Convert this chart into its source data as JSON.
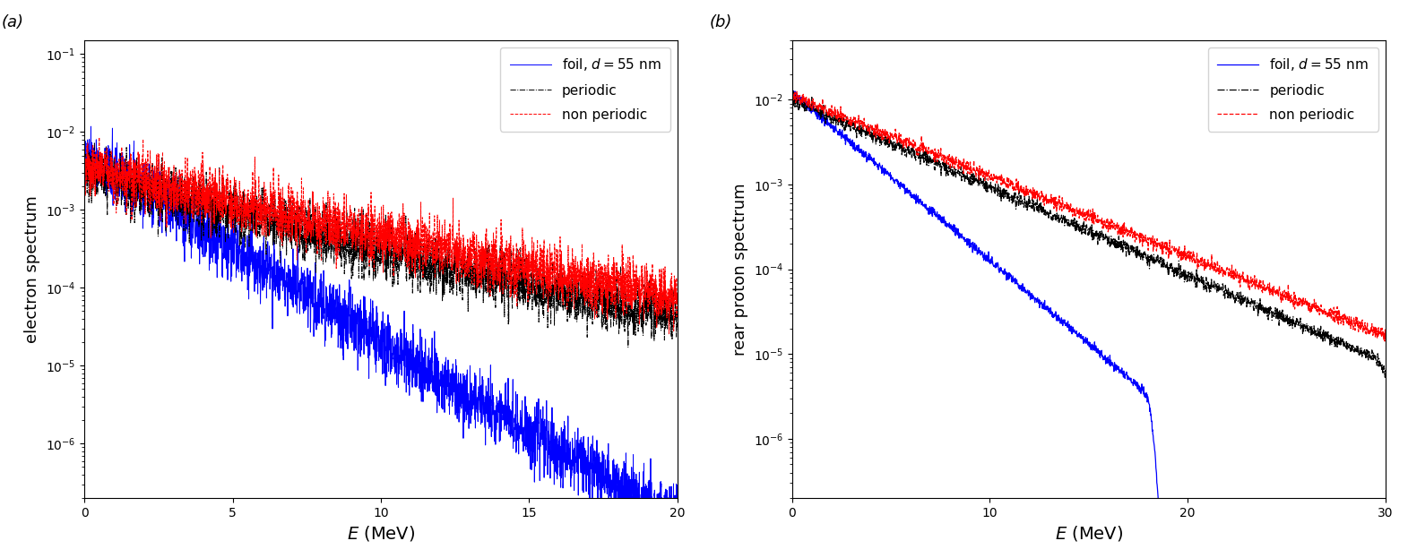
{
  "panel_a": {
    "title": "(a)",
    "xlabel": "$E$ (MeV)",
    "ylabel": "electron spectrum",
    "xlim": [
      0,
      20
    ],
    "ylim": [
      2e-07,
      0.15
    ],
    "xticks": [
      0,
      5,
      10,
      15,
      20
    ],
    "yticks_log": [
      -6,
      -4,
      -2
    ],
    "legend_labels": [
      "foil, $d = 55$ nm",
      "periodic",
      "non periodic"
    ],
    "line_colors": [
      "blue",
      "black",
      "red"
    ],
    "line_styles": [
      "-",
      "-.",
      "--"
    ]
  },
  "panel_b": {
    "title": "(b)",
    "xlabel": "$E$ (MeV)",
    "ylabel": "rear proton spectrum",
    "xlim": [
      0,
      30
    ],
    "ylim": [
      2e-07,
      0.05
    ],
    "xticks": [
      0,
      10,
      20,
      30
    ],
    "yticks_log": [
      -6,
      -4,
      -2
    ],
    "legend_labels": [
      "foil, $d = 55$ nm",
      "periodic",
      "non periodic"
    ],
    "line_colors": [
      "blue",
      "black",
      "red"
    ],
    "line_styles": [
      "-",
      "-.",
      "--"
    ]
  },
  "figsize": [
    15.71,
    6.23
  ],
  "dpi": 100
}
